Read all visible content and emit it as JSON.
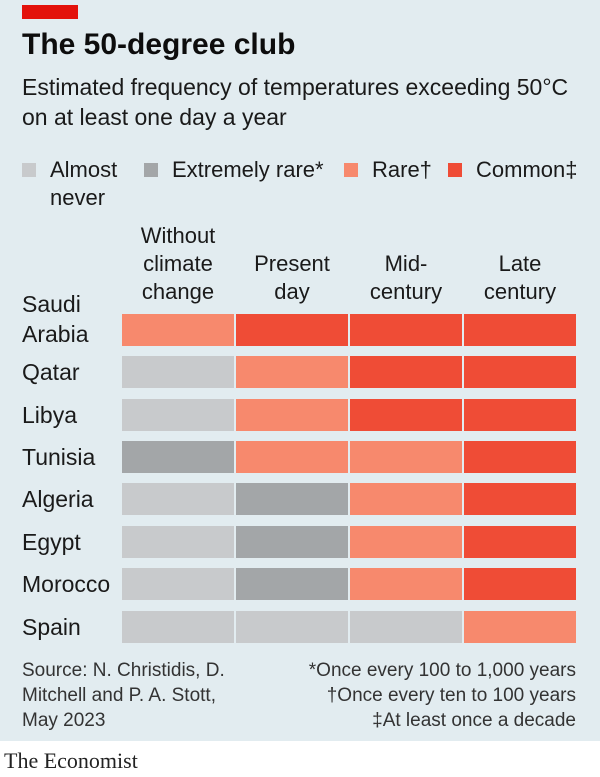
{
  "header": {
    "title": "The 50-degree club",
    "subtitle": "Estimated frequency of temperatures exceeding 50°C on at least one day a year"
  },
  "colors": {
    "background": "#e2ecf0",
    "accent": "#e3120b",
    "almost_never": "#c8cacc",
    "extremely_rare": "#a3a6a8",
    "rare": "#f7896d",
    "common": "#ef4c36"
  },
  "chart_data": {
    "type": "heatmap",
    "title": "The 50-degree club",
    "subtitle": "Estimated frequency of temperatures exceeding 50°C on at least one day a year",
    "legend": [
      {
        "key": "almost_never",
        "label": "Almost never"
      },
      {
        "key": "extremely_rare",
        "label": "Extremely rare*"
      },
      {
        "key": "rare",
        "label": "Rare†"
      },
      {
        "key": "common",
        "label": "Common‡"
      }
    ],
    "columns": [
      "Without climate change",
      "Present day",
      "Mid-century",
      "Late century"
    ],
    "rows": [
      {
        "country": "Saudi Arabia",
        "values": [
          "rare",
          "common",
          "common",
          "common"
        ]
      },
      {
        "country": "Qatar",
        "values": [
          "almost_never",
          "rare",
          "common",
          "common"
        ]
      },
      {
        "country": "Libya",
        "values": [
          "almost_never",
          "rare",
          "common",
          "common"
        ]
      },
      {
        "country": "Tunisia",
        "values": [
          "extremely_rare",
          "rare",
          "rare",
          "common"
        ]
      },
      {
        "country": "Algeria",
        "values": [
          "almost_never",
          "extremely_rare",
          "rare",
          "common"
        ]
      },
      {
        "country": "Egypt",
        "values": [
          "almost_never",
          "extremely_rare",
          "rare",
          "common"
        ]
      },
      {
        "country": "Morocco",
        "values": [
          "almost_never",
          "extremely_rare",
          "rare",
          "common"
        ]
      },
      {
        "country": "Spain",
        "values": [
          "almost_never",
          "almost_never",
          "almost_never",
          "rare"
        ]
      }
    ]
  },
  "footer": {
    "source": "Source: N. Christidis, D. Mitchell and P. A. Stott, May 2023",
    "notes": [
      "*Once every 100 to 1,000 years",
      "†Once every ten to 100 years",
      "‡At least once a decade"
    ],
    "brand": "The Economist"
  }
}
